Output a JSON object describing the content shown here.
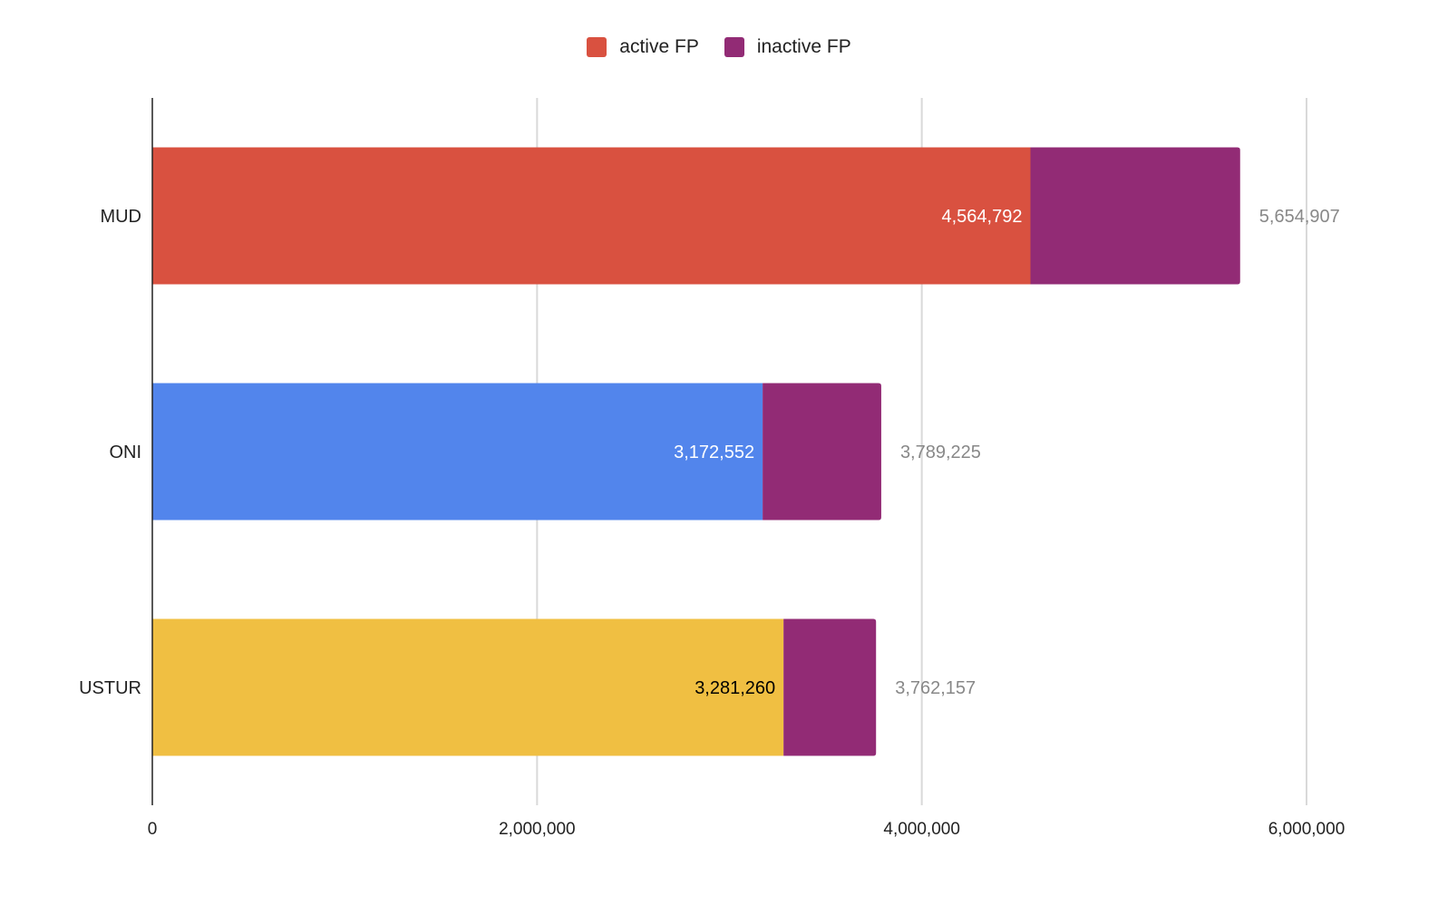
{
  "chart_data": {
    "type": "bar",
    "orientation": "horizontal",
    "stacked": true,
    "categories": [
      "MUD",
      "ONI",
      "USTUR"
    ],
    "series": [
      {
        "name": "active FP",
        "values": [
          4564792,
          3172552,
          3281260
        ],
        "data_labels": [
          "4,564,792",
          "3,172,552",
          "3,281,260"
        ]
      },
      {
        "name": "inactive FP",
        "values": [
          1090115,
          616673,
          480897
        ]
      }
    ],
    "totals": [
      5654907,
      3789225,
      3762157
    ],
    "total_labels": [
      "5,654,907",
      "3,789,225",
      "3,762,157"
    ],
    "xlim": [
      0,
      6000000
    ],
    "xticks": [
      0,
      2000000,
      4000000,
      6000000
    ],
    "xtick_labels": [
      "0",
      "2,000,000",
      "4,000,000",
      "6,000,000"
    ],
    "title": "",
    "xlabel": "",
    "ylabel": "",
    "grid": true,
    "legend_position": "top-center",
    "colors": {
      "active_by_category": [
        "#d95140",
        "#5285ec",
        "#f0bf42"
      ],
      "inactive": "#922b75",
      "active_label_text": [
        "#ffffff",
        "#ffffff",
        "#000000"
      ],
      "total_label_text": "#888888",
      "grid": "#d9d9d9",
      "axis": "#222222"
    }
  },
  "legend": {
    "items": [
      {
        "label": "active FP",
        "color": "#d95140"
      },
      {
        "label": "inactive FP",
        "color": "#922b75"
      }
    ]
  }
}
